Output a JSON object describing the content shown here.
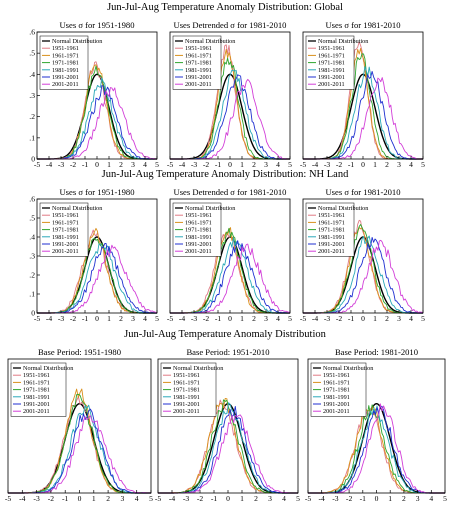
{
  "colors": {
    "Normal Distribution": "#000000",
    "1951-1961": "#e07a84",
    "1961-1971": "#d9901c",
    "1971-1981": "#2ea52e",
    "1981-1991": "#2aa8b8",
    "1991-2001": "#1f2fd0",
    "2001-2011": "#d23fd8"
  },
  "row_titles": [
    "Jun-Jul-Aug Temperature Anomaly Distribution: Global",
    "Jun-Jul-Aug Temperature Anomaly Distribution: NH Land",
    "Jun-Jul-Aug Temperature Anomaly Distribution"
  ],
  "chart_data": [
    {
      "type": "line",
      "subtitle": "Uses σ for 1951-1980",
      "xlim": [
        -5,
        5
      ],
      "ylim": [
        0,
        0.6
      ],
      "x_ticks": [
        "-5",
        "-4",
        "-3",
        "-2",
        "-1",
        "0",
        "1",
        "2",
        "3",
        "4",
        "5"
      ],
      "y_ticks": [
        ".6",
        ".5",
        ".4",
        ".3",
        ".2",
        ".1",
        "0"
      ],
      "legend": [
        "Normal Distribution",
        "1951-1961",
        "1961-1971",
        "1971-1981",
        "1981-1991",
        "1991-2001",
        "2001-2011"
      ],
      "series": [
        {
          "name": "Normal Distribution",
          "mean": 0.0,
          "sd": 1.0,
          "peak": 0.4
        },
        {
          "name": "1951-1961",
          "mean": -0.15,
          "sd": 0.85,
          "peak": 0.44
        },
        {
          "name": "1961-1971",
          "mean": -0.1,
          "sd": 0.85,
          "peak": 0.45
        },
        {
          "name": "1971-1981",
          "mean": 0.0,
          "sd": 0.9,
          "peak": 0.43
        },
        {
          "name": "1981-1991",
          "mean": 0.35,
          "sd": 1.0,
          "peak": 0.36
        },
        {
          "name": "1991-2001",
          "mean": 0.6,
          "sd": 1.05,
          "peak": 0.33
        },
        {
          "name": "2001-2011",
          "mean": 1.2,
          "sd": 1.1,
          "peak": 0.32
        }
      ]
    },
    {
      "type": "line",
      "subtitle": "Uses Detrended σ for 1981-2010",
      "xlim": [
        -5,
        5
      ],
      "ylim": [
        0,
        0.6
      ],
      "x_ticks": [
        "-5",
        "-4",
        "-3",
        "-2",
        "-1",
        "0",
        "1",
        "2",
        "3",
        "4",
        "5"
      ],
      "y_ticks": [],
      "legend": [
        "Normal Distribution",
        "1951-1961",
        "1961-1971",
        "1971-1981",
        "1981-1991",
        "1991-2001",
        "2001-2011"
      ],
      "series": [
        {
          "name": "Normal Distribution",
          "mean": 0.0,
          "sd": 1.0,
          "peak": 0.4
        },
        {
          "name": "1951-1961",
          "mean": -0.3,
          "sd": 0.75,
          "peak": 0.53
        },
        {
          "name": "1961-1971",
          "mean": -0.25,
          "sd": 0.75,
          "peak": 0.5
        },
        {
          "name": "1971-1981",
          "mean": -0.1,
          "sd": 0.8,
          "peak": 0.47
        },
        {
          "name": "1981-1991",
          "mean": 0.35,
          "sd": 0.95,
          "peak": 0.4
        },
        {
          "name": "1991-2001",
          "mean": 0.65,
          "sd": 1.0,
          "peak": 0.38
        },
        {
          "name": "2001-2011",
          "mean": 1.3,
          "sd": 1.05,
          "peak": 0.36
        }
      ]
    },
    {
      "type": "line",
      "subtitle": "Uses σ for 1981-2010",
      "xlim": [
        -5,
        5
      ],
      "ylim": [
        0,
        0.6
      ],
      "x_ticks": [
        "-5",
        "-4",
        "-3",
        "-2",
        "-1",
        "0",
        "1",
        "2",
        "3",
        "4",
        "5"
      ],
      "y_ticks": [],
      "legend": [
        "Normal Distribution",
        "1951-1961",
        "1961-1971",
        "1971-1981",
        "1981-1991",
        "1991-2001",
        "2001-2011"
      ],
      "series": [
        {
          "name": "Normal Distribution",
          "mean": 0.0,
          "sd": 1.0,
          "peak": 0.4
        },
        {
          "name": "1951-1961",
          "mean": -0.35,
          "sd": 0.7,
          "peak": 0.56
        },
        {
          "name": "1961-1971",
          "mean": -0.3,
          "sd": 0.72,
          "peak": 0.52
        },
        {
          "name": "1971-1981",
          "mean": -0.15,
          "sd": 0.78,
          "peak": 0.49
        },
        {
          "name": "1981-1991",
          "mean": 0.3,
          "sd": 0.9,
          "peak": 0.42
        },
        {
          "name": "1991-2001",
          "mean": 0.7,
          "sd": 0.95,
          "peak": 0.4
        },
        {
          "name": "2001-2011",
          "mean": 1.35,
          "sd": 1.0,
          "peak": 0.37
        }
      ]
    },
    {
      "type": "line",
      "subtitle": "Uses σ for 1951-1980",
      "xlim": [
        -5,
        5
      ],
      "ylim": [
        0,
        0.6
      ],
      "x_ticks": [
        "-5",
        "-4",
        "-3",
        "-2",
        "-1",
        "0",
        "1",
        "2",
        "3",
        "4",
        "5"
      ],
      "y_ticks": [
        ".6",
        ".5",
        ".4",
        ".3",
        ".2",
        ".1",
        "0"
      ],
      "legend": [
        "Normal Distribution",
        "1951-1961",
        "1961-1971",
        "1971-1981",
        "1981-1991",
        "1991-2001",
        "2001-2011"
      ],
      "series": [
        {
          "name": "Normal Distribution",
          "mean": 0.0,
          "sd": 1.0,
          "peak": 0.4
        },
        {
          "name": "1951-1961",
          "mean": -0.2,
          "sd": 1.0,
          "peak": 0.41
        },
        {
          "name": "1961-1971",
          "mean": -0.15,
          "sd": 0.95,
          "peak": 0.42
        },
        {
          "name": "1971-1981",
          "mean": 0.0,
          "sd": 1.0,
          "peak": 0.4
        },
        {
          "name": "1981-1991",
          "mean": 0.4,
          "sd": 1.1,
          "peak": 0.36
        },
        {
          "name": "1991-2001",
          "mean": 0.7,
          "sd": 1.15,
          "peak": 0.34
        },
        {
          "name": "2001-2011",
          "mean": 1.3,
          "sd": 1.2,
          "peak": 0.33
        }
      ]
    },
    {
      "type": "line",
      "subtitle": "Uses Detrended σ for 1981-2010",
      "xlim": [
        -5,
        5
      ],
      "ylim": [
        0,
        0.6
      ],
      "x_ticks": [
        "-5",
        "-4",
        "-3",
        "-2",
        "-1",
        "0",
        "1",
        "2",
        "3",
        "4",
        "5"
      ],
      "y_ticks": [],
      "legend": [
        "Normal Distribution",
        "1951-1961",
        "1961-1971",
        "1971-1981",
        "1981-1991",
        "1991-2001",
        "2001-2011"
      ],
      "series": [
        {
          "name": "Normal Distribution",
          "mean": 0.0,
          "sd": 1.0,
          "peak": 0.4
        },
        {
          "name": "1951-1961",
          "mean": -0.25,
          "sd": 0.95,
          "peak": 0.43
        },
        {
          "name": "1961-1971",
          "mean": -0.2,
          "sd": 0.9,
          "peak": 0.44
        },
        {
          "name": "1971-1981",
          "mean": -0.05,
          "sd": 0.95,
          "peak": 0.42
        },
        {
          "name": "1981-1991",
          "mean": 0.4,
          "sd": 1.05,
          "peak": 0.38
        },
        {
          "name": "1991-2001",
          "mean": 0.75,
          "sd": 1.1,
          "peak": 0.36
        },
        {
          "name": "2001-2011",
          "mean": 1.4,
          "sd": 1.15,
          "peak": 0.34
        }
      ]
    },
    {
      "type": "line",
      "subtitle": "Uses σ for 1981-2010",
      "xlim": [
        -5,
        5
      ],
      "ylim": [
        0,
        0.6
      ],
      "x_ticks": [
        "-5",
        "-4",
        "-3",
        "-2",
        "-1",
        "0",
        "1",
        "2",
        "3",
        "4",
        "5"
      ],
      "y_ticks": [],
      "legend": [
        "Normal Distribution",
        "1951-1961",
        "1961-1971",
        "1971-1981",
        "1981-1991",
        "1991-2001",
        "2001-2011"
      ],
      "series": [
        {
          "name": "Normal Distribution",
          "mean": 0.0,
          "sd": 1.0,
          "peak": 0.4
        },
        {
          "name": "1951-1961",
          "mean": -0.3,
          "sd": 0.9,
          "peak": 0.46
        },
        {
          "name": "1961-1971",
          "mean": -0.25,
          "sd": 0.88,
          "peak": 0.46
        },
        {
          "name": "1971-1981",
          "mean": -0.1,
          "sd": 0.92,
          "peak": 0.44
        },
        {
          "name": "1981-1991",
          "mean": 0.35,
          "sd": 1.0,
          "peak": 0.4
        },
        {
          "name": "1991-2001",
          "mean": 0.8,
          "sd": 1.05,
          "peak": 0.38
        },
        {
          "name": "2001-2011",
          "mean": 1.45,
          "sd": 1.1,
          "peak": 0.36
        }
      ]
    },
    {
      "type": "line",
      "subtitle": "Base Period: 1951-1980",
      "xlim": [
        -5,
        5
      ],
      "ylim": [
        0,
        0.6
      ],
      "x_ticks": [
        "-5",
        "-4",
        "-3",
        "-2",
        "-1",
        "0",
        "1",
        "2",
        "3",
        "4",
        "5"
      ],
      "y_ticks": [],
      "legend": [
        "Normal Distribution",
        "1951-1961",
        "1961-1971",
        "1971-1981",
        "1981-1991",
        "1991-2001",
        "2001-2011"
      ],
      "series": [
        {
          "name": "Normal Distribution",
          "mean": 0.0,
          "sd": 1.0,
          "peak": 0.4
        },
        {
          "name": "1951-1961",
          "mean": -0.1,
          "sd": 0.95,
          "peak": 0.42
        },
        {
          "name": "1961-1971",
          "mean": -0.05,
          "sd": 0.9,
          "peak": 0.45
        },
        {
          "name": "1971-1981",
          "mean": 0.0,
          "sd": 0.95,
          "peak": 0.42
        },
        {
          "name": "1981-1991",
          "mean": 0.4,
          "sd": 1.0,
          "peak": 0.38
        },
        {
          "name": "1991-2001",
          "mean": 0.5,
          "sd": 1.0,
          "peak": 0.36
        },
        {
          "name": "2001-2011",
          "mean": 0.8,
          "sd": 1.05,
          "peak": 0.35
        }
      ]
    },
    {
      "type": "line",
      "subtitle": "Base Period: 1951-2010",
      "xlim": [
        -5,
        5
      ],
      "ylim": [
        0,
        0.6
      ],
      "x_ticks": [
        "-5",
        "-4",
        "-3",
        "-2",
        "-1",
        "0",
        "1",
        "2",
        "3",
        "4",
        "5"
      ],
      "y_ticks": [],
      "legend": [
        "Normal Distribution",
        "1951-1961",
        "1961-1971",
        "1971-1981",
        "1981-1991",
        "1991-2001",
        "2001-2011"
      ],
      "series": [
        {
          "name": "Normal Distribution",
          "mean": 0.0,
          "sd": 1.0,
          "peak": 0.4
        },
        {
          "name": "1951-1961",
          "mean": -0.4,
          "sd": 0.95,
          "peak": 0.4
        },
        {
          "name": "1961-1971",
          "mean": -0.35,
          "sd": 0.95,
          "peak": 0.41
        },
        {
          "name": "1971-1981",
          "mean": -0.2,
          "sd": 0.95,
          "peak": 0.4
        },
        {
          "name": "1981-1991",
          "mean": 0.1,
          "sd": 1.0,
          "peak": 0.38
        },
        {
          "name": "1991-2001",
          "mean": 0.35,
          "sd": 1.0,
          "peak": 0.37
        },
        {
          "name": "2001-2011",
          "mean": 0.6,
          "sd": 1.05,
          "peak": 0.35
        }
      ]
    },
    {
      "type": "line",
      "subtitle": "Base Period: 1981-2010",
      "xlim": [
        -5,
        5
      ],
      "ylim": [
        0,
        0.6
      ],
      "x_ticks": [
        "-5",
        "-4",
        "-3",
        "-2",
        "-1",
        "0",
        "1",
        "2",
        "3",
        "4",
        "5"
      ],
      "y_ticks": [],
      "legend": [
        "Normal Distribution",
        "1951-1961",
        "1961-1971",
        "1971-1981",
        "1981-1991",
        "1991-2001",
        "2001-2011"
      ],
      "series": [
        {
          "name": "Normal Distribution",
          "mean": 0.0,
          "sd": 1.0,
          "peak": 0.4
        },
        {
          "name": "1951-1961",
          "mean": -0.55,
          "sd": 0.95,
          "peak": 0.38
        },
        {
          "name": "1961-1971",
          "mean": -0.5,
          "sd": 0.95,
          "peak": 0.39
        },
        {
          "name": "1971-1981",
          "mean": -0.35,
          "sd": 0.95,
          "peak": 0.38
        },
        {
          "name": "1981-1991",
          "mean": -0.1,
          "sd": 1.0,
          "peak": 0.37
        },
        {
          "name": "1991-2001",
          "mean": 0.2,
          "sd": 1.0,
          "peak": 0.37
        },
        {
          "name": "2001-2011",
          "mean": 0.45,
          "sd": 1.0,
          "peak": 0.38
        }
      ]
    }
  ]
}
